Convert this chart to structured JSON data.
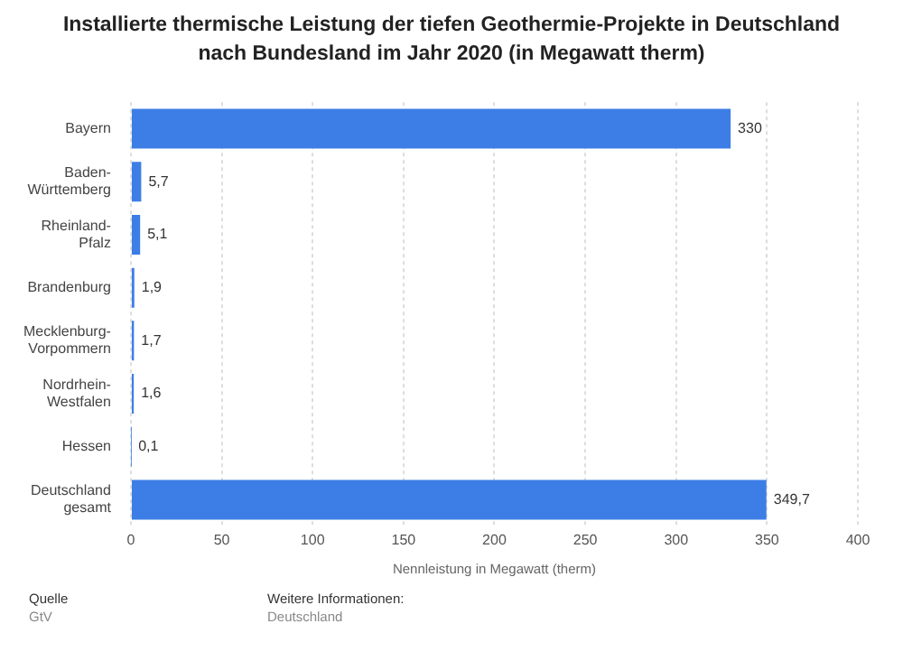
{
  "chart_data": {
    "type": "bar",
    "orientation": "horizontal",
    "title": "Installierte thermische Leistung der tiefen Geothermie-Projekte in Deutschland nach Bundesland im Jahr 2020 (in Megawatt therm)",
    "xlabel": "Nennleistung in Megawatt (therm)",
    "categories": [
      "Bayern",
      "Baden-Württemberg",
      "Rheinland-Pfalz",
      "Brandenburg",
      "Mecklenburg-Vorpommern",
      "Nordrhein-Westfalen",
      "Hessen",
      "Deutschland gesamt"
    ],
    "values": [
      330,
      5.7,
      5.1,
      1.9,
      1.7,
      1.6,
      0.1,
      349.7
    ],
    "value_labels": [
      "330",
      "5,7",
      "5,1",
      "1,9",
      "1,7",
      "1,6",
      "0,1",
      "349,7"
    ],
    "color": "#3d7ee6",
    "xlim": [
      0,
      400
    ],
    "xticks": [
      0,
      50,
      100,
      150,
      200,
      250,
      300,
      350,
      400
    ],
    "grid": "x",
    "annotations": [
      "Quelle",
      "GtV",
      "Weitere Informationen:",
      "Deutschland"
    ]
  }
}
